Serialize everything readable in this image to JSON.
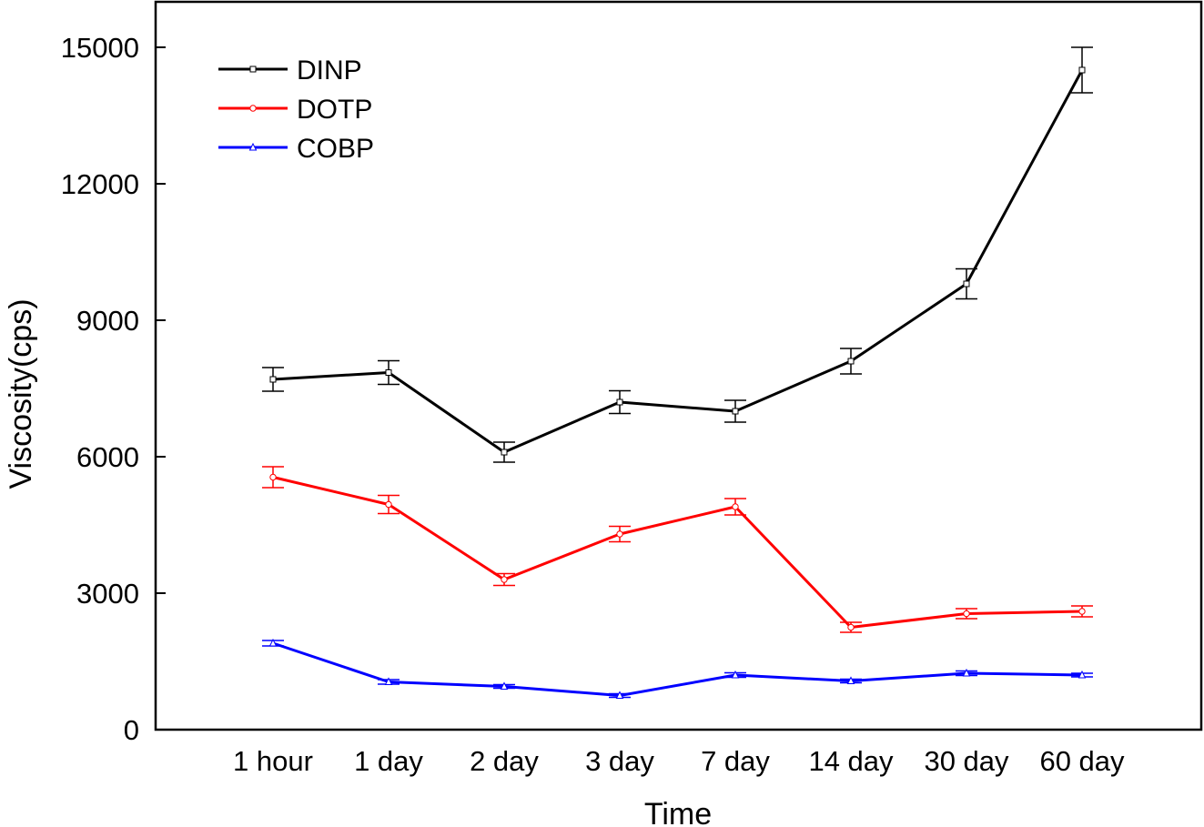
{
  "chart_data": {
    "type": "line",
    "title": "",
    "xlabel": "Time",
    "ylabel": "Viscosity(cps)",
    "categories": [
      "1 hour",
      "1 day",
      "2 day",
      "3 day",
      "7 day",
      "14 day",
      "30 day",
      "60 day"
    ],
    "ylim": [
      0,
      15000
    ],
    "yticks": [
      0,
      3000,
      6000,
      9000,
      12000,
      15000
    ],
    "grid": false,
    "legend_position": "top-left",
    "series": [
      {
        "name": "DINP",
        "color": "#000000",
        "marker": "square",
        "values": [
          7700,
          7850,
          6100,
          7200,
          7000,
          8100,
          9800,
          14500
        ],
        "errors": [
          260,
          260,
          220,
          250,
          240,
          280,
          330,
          500
        ]
      },
      {
        "name": "DOTP",
        "color": "#ff0000",
        "marker": "circle",
        "values": [
          5550,
          4950,
          3300,
          4300,
          4900,
          2250,
          2550,
          2600
        ],
        "errors": [
          230,
          200,
          130,
          170,
          180,
          110,
          110,
          120
        ]
      },
      {
        "name": "COBP",
        "color": "#0000ff",
        "marker": "triangle",
        "values": [
          1900,
          1050,
          950,
          750,
          1200,
          1070,
          1240,
          1200
        ],
        "errors": [
          60,
          50,
          40,
          40,
          50,
          40,
          50,
          40
        ]
      }
    ]
  }
}
